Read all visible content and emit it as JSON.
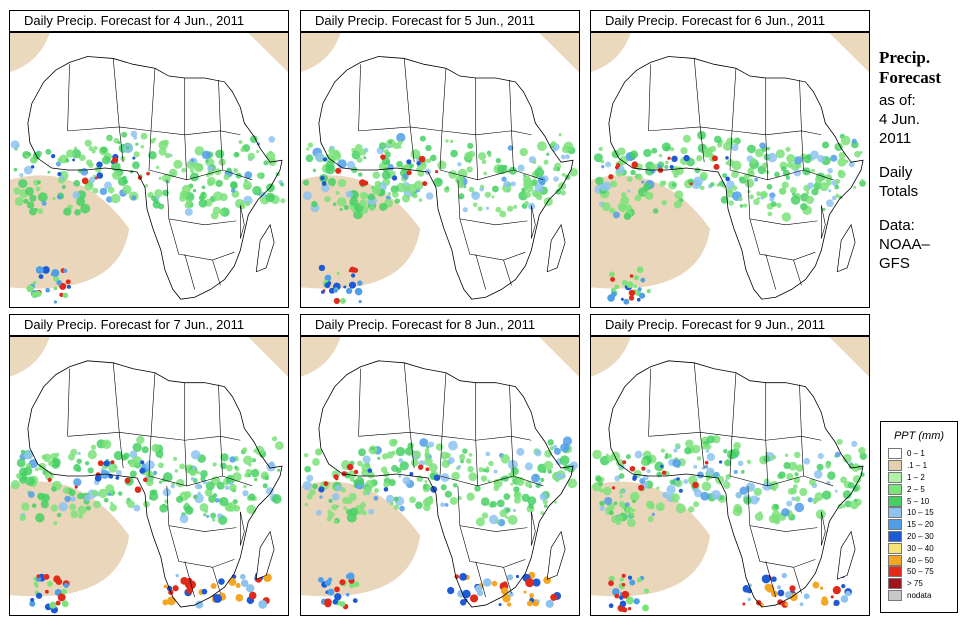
{
  "panels": [
    {
      "title": "Daily Precip. Forecast for  4 Jun., 2011"
    },
    {
      "title": "Daily Precip. Forecast for  5 Jun., 2011"
    },
    {
      "title": "Daily Precip. Forecast for  6 Jun., 2011"
    },
    {
      "title": "Daily Precip. Forecast for  7 Jun., 2011"
    },
    {
      "title": "Daily Precip. Forecast for  8 Jun., 2011"
    },
    {
      "title": "Daily Precip. Forecast for  9 Jun., 2011"
    }
  ],
  "sidebar": {
    "heading_line1": "Precip.",
    "heading_line2": "Forecast",
    "as_of": "as of:",
    "date_line1": "4 Jun.",
    "date_line2": "2011",
    "totals_line1": "Daily",
    "totals_line2": "Totals",
    "data_line1": "Data:",
    "data_line2": "NOAA–",
    "data_line3": "GFS"
  },
  "legend": {
    "title": "PPT (mm)",
    "items": [
      {
        "label": "0 – 1",
        "color": "#ffffff"
      },
      {
        "label": ".1 – 1",
        "color": "#e6cfae"
      },
      {
        "label": "1 – 2",
        "color": "#b5f0a8"
      },
      {
        "label": "2 – 5",
        "color": "#7de27a"
      },
      {
        "label": "5 – 10",
        "color": "#46d064"
      },
      {
        "label": "10 – 15",
        "color": "#8ec3f0"
      },
      {
        "label": "15 – 20",
        "color": "#4f9ee8"
      },
      {
        "label": "20 – 30",
        "color": "#1f5ad6"
      },
      {
        "label": "30 – 40",
        "color": "#f8e27a"
      },
      {
        "label": "40 – 50",
        "color": "#f5a623"
      },
      {
        "label": "50 – 75",
        "color": "#e02a1a"
      },
      {
        "label": "> 75",
        "color": "#a0121e"
      },
      {
        "label": "nodata",
        "color": "#c8c8c8"
      }
    ]
  }
}
